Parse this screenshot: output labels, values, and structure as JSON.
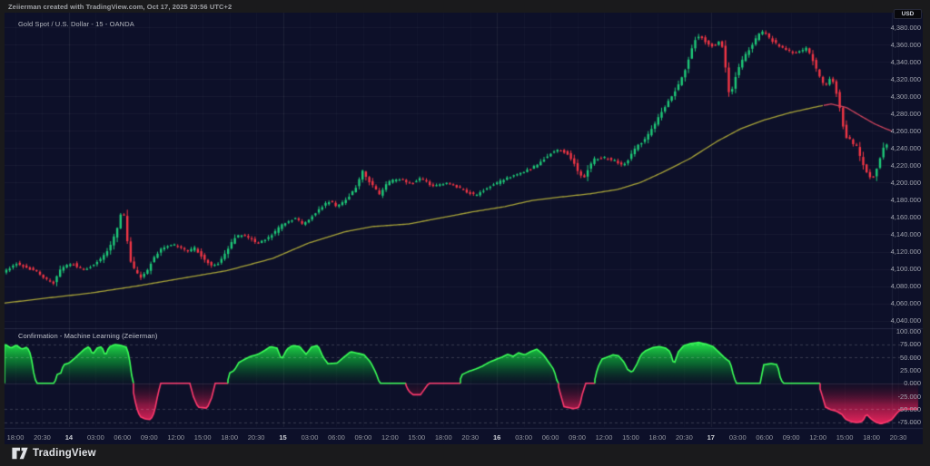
{
  "header": {
    "attribution": "Zeiierman created with TradingView.com, Oct 17, 2025 20:56 UTC+2",
    "symbol_line": "Gold Spot / U.S. Dollar - 15 - OANDA"
  },
  "price_axis": {
    "currency_label": "USD",
    "top": 4380,
    "step": 20,
    "count": 18
  },
  "indicator_axis": {
    "top": 100,
    "step": 25,
    "count": 8
  },
  "time_axis": {
    "labels": [
      "18:00",
      "20:30",
      "14",
      "03:00",
      "06:00",
      "09:00",
      "12:00",
      "15:00",
      "18:00",
      "20:30",
      "15",
      "03:00",
      "06:00",
      "09:00",
      "12:00",
      "15:00",
      "18:00",
      "20:30",
      "16",
      "03:00",
      "06:00",
      "09:00",
      "12:00",
      "15:00",
      "18:00",
      "20:30",
      "17",
      "03:00",
      "06:00",
      "09:00",
      "12:00",
      "15:00",
      "18:00",
      "20:30"
    ],
    "day_labels": [
      "14",
      "15",
      "16",
      "17"
    ]
  },
  "indicator": {
    "label": "Confirmation - Machine Learning (Zeiierman)"
  },
  "footer": {
    "brand": "TradingView"
  },
  "colors": {
    "background": "#0d1029",
    "frame": "#1a1a1c",
    "candle_up": "#1ec978",
    "candle_down": "#f23645",
    "ma_up": "#a8a339",
    "ma_down": "#d0455e",
    "osc_green_line": "#3cff58",
    "osc_red_line": "#ff3a6e",
    "axis_text": "#a0a3ae"
  },
  "chart_data": [
    {
      "type": "candlestick",
      "title": "Gold Spot / U.S. Dollar",
      "interval": "15",
      "exchange": "OANDA",
      "currency": "USD",
      "ylabel": "USD",
      "ylim": [
        4031,
        4397
      ],
      "price_path": [
        [
          2,
          4094
        ],
        [
          12,
          4099
        ],
        [
          22,
          4107
        ],
        [
          32,
          4101
        ],
        [
          42,
          4099
        ],
        [
          52,
          4089
        ],
        [
          62,
          4083
        ],
        [
          72,
          4102
        ],
        [
          84,
          4106
        ],
        [
          94,
          4099
        ],
        [
          104,
          4103
        ],
        [
          114,
          4111
        ],
        [
          124,
          4124
        ],
        [
          132,
          4144
        ],
        [
          139,
          4172
        ],
        [
          143,
          4140
        ],
        [
          146,
          4112
        ],
        [
          152,
          4098
        ],
        [
          158,
          4090
        ],
        [
          165,
          4096
        ],
        [
          172,
          4112
        ],
        [
          182,
          4125
        ],
        [
          192,
          4128
        ],
        [
          202,
          4126
        ],
        [
          210,
          4120
        ],
        [
          218,
          4124
        ],
        [
          228,
          4112
        ],
        [
          237,
          4103
        ],
        [
          246,
          4108
        ],
        [
          254,
          4122
        ],
        [
          262,
          4136
        ],
        [
          270,
          4140
        ],
        [
          278,
          4136
        ],
        [
          286,
          4129
        ],
        [
          296,
          4134
        ],
        [
          306,
          4142
        ],
        [
          314,
          4151
        ],
        [
          322,
          4156
        ],
        [
          330,
          4159
        ],
        [
          337,
          4151
        ],
        [
          344,
          4158
        ],
        [
          352,
          4166
        ],
        [
          360,
          4174
        ],
        [
          368,
          4179
        ],
        [
          374,
          4172
        ],
        [
          382,
          4177
        ],
        [
          390,
          4187
        ],
        [
          397,
          4197
        ],
        [
          403,
          4213
        ],
        [
          410,
          4201
        ],
        [
          417,
          4193
        ],
        [
          421,
          4185
        ],
        [
          427,
          4196
        ],
        [
          434,
          4202
        ],
        [
          441,
          4203
        ],
        [
          447,
          4204
        ],
        [
          453,
          4199
        ],
        [
          460,
          4200
        ],
        [
          467,
          4205
        ],
        [
          474,
          4200
        ],
        [
          480,
          4196
        ],
        [
          490,
          4199
        ],
        [
          500,
          4198
        ],
        [
          512,
          4192
        ],
        [
          527,
          4185
        ],
        [
          538,
          4192
        ],
        [
          548,
          4198
        ],
        [
          558,
          4203
        ],
        [
          568,
          4208
        ],
        [
          578,
          4212
        ],
        [
          588,
          4216
        ],
        [
          596,
          4221
        ],
        [
          604,
          4229
        ],
        [
          612,
          4236
        ],
        [
          620,
          4238
        ],
        [
          628,
          4234
        ],
        [
          635,
          4224
        ],
        [
          642,
          4208
        ],
        [
          647,
          4206
        ],
        [
          652,
          4218
        ],
        [
          658,
          4227
        ],
        [
          666,
          4229
        ],
        [
          674,
          4228
        ],
        [
          681,
          4225
        ],
        [
          689,
          4220
        ],
        [
          695,
          4226
        ],
        [
          702,
          4238
        ],
        [
          708,
          4245
        ],
        [
          714,
          4250
        ],
        [
          720,
          4260
        ],
        [
          727,
          4272
        ],
        [
          734,
          4285
        ],
        [
          741,
          4297
        ],
        [
          748,
          4308
        ],
        [
          755,
          4322
        ],
        [
          761,
          4340
        ],
        [
          766,
          4358
        ],
        [
          771,
          4371
        ],
        [
          776,
          4368
        ],
        [
          781,
          4363
        ],
        [
          786,
          4358
        ],
        [
          791,
          4360
        ],
        [
          796,
          4363
        ],
        [
          799,
          4358
        ],
        [
          802,
          4338
        ],
        [
          805,
          4310
        ],
        [
          808,
          4298
        ],
        [
          811,
          4315
        ],
        [
          815,
          4328
        ],
        [
          822,
          4344
        ],
        [
          827,
          4352
        ],
        [
          832,
          4360
        ],
        [
          837,
          4368
        ],
        [
          842,
          4375
        ],
        [
          847,
          4372
        ],
        [
          852,
          4366
        ],
        [
          857,
          4362
        ],
        [
          862,
          4358
        ],
        [
          867,
          4354
        ],
        [
          872,
          4352
        ],
        [
          877,
          4351
        ],
        [
          882,
          4350
        ],
        [
          887,
          4353
        ],
        [
          892,
          4356
        ],
        [
          897,
          4345
        ],
        [
          902,
          4333
        ],
        [
          907,
          4320
        ],
        [
          911,
          4312
        ],
        [
          915,
          4316
        ],
        [
          919,
          4322
        ],
        [
          923,
          4310
        ],
        [
          927,
          4295
        ],
        [
          931,
          4270
        ],
        [
          935,
          4253
        ],
        [
          939,
          4250
        ],
        [
          943,
          4244
        ],
        [
          947,
          4242
        ],
        [
          950,
          4232
        ],
        [
          953,
          4223
        ],
        [
          957,
          4214
        ],
        [
          961,
          4207
        ],
        [
          964,
          4205
        ],
        [
          968,
          4213
        ],
        [
          972,
          4227
        ],
        [
          976,
          4240
        ],
        [
          979,
          4247
        ],
        [
          982,
          4239
        ]
      ],
      "ma_path": [
        [
          2,
          4060
        ],
        [
          50,
          4066
        ],
        [
          100,
          4072
        ],
        [
          150,
          4080
        ],
        [
          200,
          4089
        ],
        [
          250,
          4098
        ],
        [
          300,
          4112
        ],
        [
          340,
          4130
        ],
        [
          380,
          4143
        ],
        [
          410,
          4149
        ],
        [
          450,
          4152
        ],
        [
          490,
          4160
        ],
        [
          520,
          4166
        ],
        [
          555,
          4172
        ],
        [
          585,
          4179
        ],
        [
          615,
          4183
        ],
        [
          650,
          4187
        ],
        [
          680,
          4192
        ],
        [
          705,
          4200
        ],
        [
          730,
          4212
        ],
        [
          760,
          4228
        ],
        [
          790,
          4248
        ],
        [
          815,
          4262
        ],
        [
          840,
          4272
        ],
        [
          870,
          4281
        ],
        [
          900,
          4288
        ],
        [
          915,
          4291
        ],
        [
          932,
          4287
        ],
        [
          948,
          4277
        ],
        [
          963,
          4268
        ],
        [
          976,
          4262
        ],
        [
          986,
          4258
        ]
      ],
      "ma_trend_change_x": 907
    },
    {
      "type": "area",
      "title": "Confirmation - Machine Learning (Zeiierman)",
      "ylim": [
        -82,
        105
      ],
      "gridlines_dashed": [
        75,
        50,
        -50,
        -75
      ],
      "zero_line": 0,
      "path": [
        [
          0,
          72
        ],
        [
          6,
          75
        ],
        [
          12,
          68
        ],
        [
          18,
          74
        ],
        [
          24,
          66
        ],
        [
          30,
          70
        ],
        [
          34,
          55
        ],
        [
          38,
          10
        ],
        [
          41,
          0
        ],
        [
          60,
          0
        ],
        [
          63,
          17
        ],
        [
          67,
          20
        ],
        [
          70,
          36
        ],
        [
          76,
          39
        ],
        [
          82,
          48
        ],
        [
          88,
          58
        ],
        [
          93,
          66
        ],
        [
          98,
          71
        ],
        [
          102,
          56
        ],
        [
          107,
          68
        ],
        [
          112,
          71
        ],
        [
          116,
          53
        ],
        [
          120,
          70
        ],
        [
          126,
          75
        ],
        [
          134,
          73
        ],
        [
          140,
          69
        ],
        [
          144,
          32
        ],
        [
          147,
          -18
        ],
        [
          150,
          -45
        ],
        [
          154,
          -64
        ],
        [
          160,
          -69
        ],
        [
          166,
          -70
        ],
        [
          170,
          -56
        ],
        [
          174,
          -20
        ],
        [
          177,
          0
        ],
        [
          209,
          0
        ],
        [
          213,
          -26
        ],
        [
          218,
          -46
        ],
        [
          228,
          -48
        ],
        [
          233,
          -28
        ],
        [
          237,
          0
        ],
        [
          250,
          0
        ],
        [
          253,
          20
        ],
        [
          258,
          25
        ],
        [
          263,
          40
        ],
        [
          269,
          46
        ],
        [
          276,
          52
        ],
        [
          284,
          56
        ],
        [
          291,
          63
        ],
        [
          298,
          71
        ],
        [
          305,
          68
        ],
        [
          310,
          46
        ],
        [
          316,
          66
        ],
        [
          322,
          73
        ],
        [
          330,
          71
        ],
        [
          337,
          56
        ],
        [
          343,
          70
        ],
        [
          350,
          73
        ],
        [
          356,
          50
        ],
        [
          361,
          38
        ],
        [
          371,
          39
        ],
        [
          379,
          51
        ],
        [
          386,
          61
        ],
        [
          394,
          58
        ],
        [
          401,
          55
        ],
        [
          408,
          41
        ],
        [
          414,
          20
        ],
        [
          418,
          0
        ],
        [
          446,
          0
        ],
        [
          450,
          -15
        ],
        [
          455,
          -22
        ],
        [
          463,
          -22
        ],
        [
          468,
          -10
        ],
        [
          472,
          0
        ],
        [
          505,
          0
        ],
        [
          509,
          17
        ],
        [
          516,
          23
        ],
        [
          523,
          27
        ],
        [
          531,
          33
        ],
        [
          539,
          41
        ],
        [
          546,
          46
        ],
        [
          553,
          51
        ],
        [
          559,
          56
        ],
        [
          565,
          52
        ],
        [
          571,
          59
        ],
        [
          578,
          55
        ],
        [
          584,
          61
        ],
        [
          591,
          66
        ],
        [
          598,
          56
        ],
        [
          604,
          41
        ],
        [
          610,
          26
        ],
        [
          614,
          0
        ],
        [
          617,
          -20
        ],
        [
          621,
          -45
        ],
        [
          632,
          -49
        ],
        [
          638,
          -46
        ],
        [
          641,
          -22
        ],
        [
          645,
          0
        ],
        [
          654,
          0
        ],
        [
          658,
          30
        ],
        [
          663,
          47
        ],
        [
          669,
          51
        ],
        [
          675,
          55
        ],
        [
          681,
          53
        ],
        [
          687,
          41
        ],
        [
          691,
          27
        ],
        [
          696,
          21
        ],
        [
          701,
          36
        ],
        [
          706,
          56
        ],
        [
          711,
          63
        ],
        [
          719,
          69
        ],
        [
          726,
          71
        ],
        [
          733,
          68
        ],
        [
          738,
          61
        ],
        [
          742,
          36
        ],
        [
          747,
          61
        ],
        [
          753,
          73
        ],
        [
          761,
          77
        ],
        [
          769,
          79
        ],
        [
          777,
          76
        ],
        [
          785,
          71
        ],
        [
          791,
          61
        ],
        [
          798,
          49
        ],
        [
          804,
          41
        ],
        [
          808,
          12
        ],
        [
          811,
          0
        ],
        [
          837,
          0
        ],
        [
          841,
          36
        ],
        [
          849,
          38
        ],
        [
          856,
          36
        ],
        [
          859,
          12
        ],
        [
          862,
          0
        ],
        [
          901,
          0
        ],
        [
          905,
          -22
        ],
        [
          909,
          -46
        ],
        [
          915,
          -51
        ],
        [
          921,
          -54
        ],
        [
          927,
          -60
        ],
        [
          931,
          -69
        ],
        [
          937,
          -74
        ],
        [
          944,
          -76
        ],
        [
          950,
          -73
        ],
        [
          954,
          -59
        ],
        [
          958,
          -67
        ],
        [
          964,
          -75
        ],
        [
          970,
          -78
        ],
        [
          976,
          -75
        ],
        [
          982,
          -70
        ],
        [
          986,
          -61
        ],
        [
          990,
          -53
        ],
        [
          995,
          -50
        ],
        [
          1012,
          -50
        ]
      ]
    }
  ]
}
